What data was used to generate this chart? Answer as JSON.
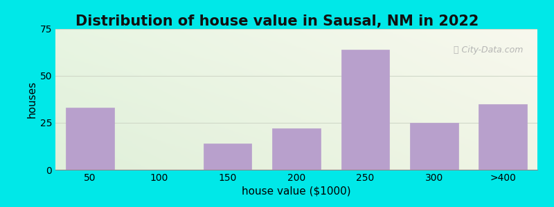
{
  "title": "Distribution of house value in Sausal, NM in 2022",
  "xlabel": "house value ($1000)",
  "ylabel": "houses",
  "categories": [
    "50",
    "100",
    "150",
    "200",
    "250",
    "300",
    ">400"
  ],
  "values": [
    33,
    0,
    14,
    22,
    64,
    25,
    35
  ],
  "bar_color": "#b8a0cc",
  "bar_edge_color": "#b8a0cc",
  "ylim": [
    0,
    75
  ],
  "yticks": [
    0,
    25,
    50,
    75
  ],
  "background_outer": "#00e8e8",
  "background_inner_topleft": "#e8f5e2",
  "background_inner_topright": "#f5f5e8",
  "background_inner_bottomleft": "#dff0da",
  "background_inner_bottomright": "#eef5e8",
  "grid_color": "#d0d8c8",
  "title_fontsize": 15,
  "axis_label_fontsize": 11,
  "tick_fontsize": 10,
  "watermark_text": "City-Data.com",
  "bar_width": 0.7
}
